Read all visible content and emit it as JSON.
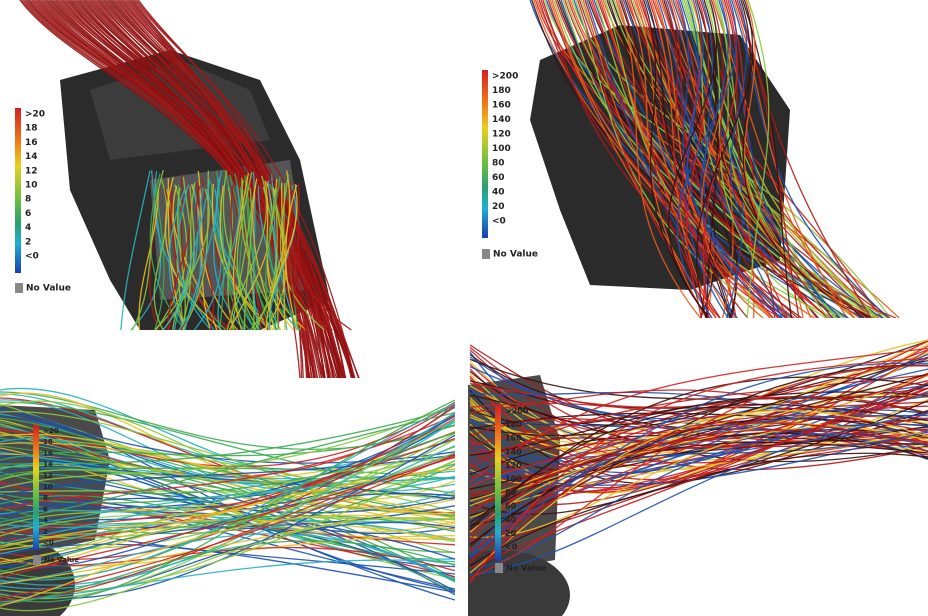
{
  "panels": [
    {
      "legend": {
        "labels": [
          ">20",
          "18",
          "16",
          "14",
          "12",
          "10",
          "8",
          "6",
          "4",
          "2",
          "<0"
        ],
        "no_value": "No Value"
      }
    },
    {
      "legend": {
        "labels": [
          ">200",
          "180",
          "160",
          "140",
          "120",
          "100",
          "80",
          "60",
          "40",
          "20",
          "<0"
        ],
        "no_value": "No Value"
      }
    },
    {
      "legend": {
        "labels": [
          ">20",
          "18",
          "16",
          "14",
          "12",
          "10",
          "8",
          "6",
          "4",
          "2",
          "<0"
        ],
        "no_value": "No Value"
      }
    },
    {
      "legend": {
        "labels": [
          ">200",
          "180",
          "160",
          "140",
          "120",
          "100",
          "80",
          "60",
          "40",
          "20",
          "<0"
        ],
        "no_value": "No Value"
      }
    }
  ]
}
